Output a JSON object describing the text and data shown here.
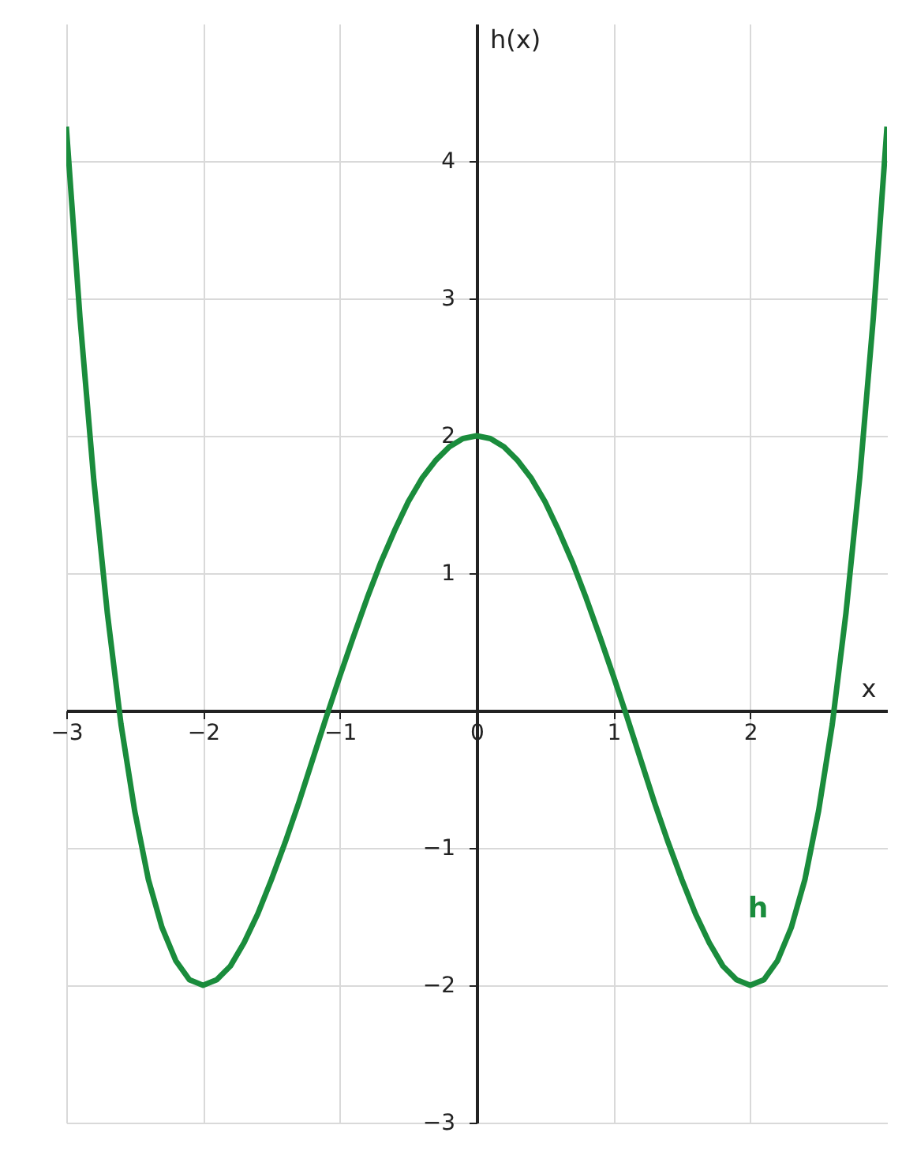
{
  "chart_data": {
    "type": "line",
    "xlabel": "x",
    "ylabel": "h(x)",
    "x": [
      -3,
      -2.9,
      -2.8,
      -2.7,
      -2.6,
      -2.5,
      -2.4,
      -2.3,
      -2.2,
      -2.1,
      -2,
      -1.9,
      -1.8,
      -1.7,
      -1.6,
      -1.5,
      -1.4,
      -1.3,
      -1.2,
      -1.1,
      -1,
      -0.9,
      -0.8,
      -0.7,
      -0.6,
      -0.5,
      -0.4,
      -0.3,
      -0.2,
      -0.1,
      0,
      0.1,
      0.2,
      0.3,
      0.4,
      0.5,
      0.6,
      0.7,
      0.8,
      0.9,
      1,
      1.1,
      1.2,
      1.3,
      1.4,
      1.5,
      1.6,
      1.7,
      1.8,
      1.9,
      2,
      2.1,
      2.2,
      2.3,
      2.4,
      2.5,
      2.6,
      2.7,
      2.8,
      2.9,
      3
    ],
    "series": [
      {
        "name": "h",
        "color": "#1a8c3c",
        "values": [
          4.25,
          2.86,
          1.69,
          0.71,
          -0.1,
          -0.73,
          -1.23,
          -1.58,
          -1.82,
          -1.96,
          -2,
          -1.96,
          -1.86,
          -1.69,
          -1.48,
          -1.23,
          -0.96,
          -0.67,
          -0.36,
          -0.05,
          0.25,
          0.54,
          0.82,
          1.08,
          1.31,
          1.52,
          1.69,
          1.82,
          1.92,
          1.98,
          2,
          1.98,
          1.92,
          1.82,
          1.69,
          1.52,
          1.31,
          1.08,
          0.82,
          0.54,
          0.25,
          -0.05,
          -0.36,
          -0.67,
          -0.96,
          -1.23,
          -1.48,
          -1.69,
          -1.86,
          -1.96,
          -2,
          -1.96,
          -1.82,
          -1.58,
          -1.23,
          -0.73,
          -0.1,
          0.71,
          1.69,
          2.86,
          4.25
        ]
      }
    ],
    "xlim": [
      -3,
      3
    ],
    "ylim": [
      -3,
      5
    ],
    "xticks": [
      -3,
      -2,
      -1,
      0,
      1,
      2
    ],
    "yticks": [
      -3,
      -2,
      -1,
      1,
      2,
      3,
      4
    ],
    "grid": true
  }
}
